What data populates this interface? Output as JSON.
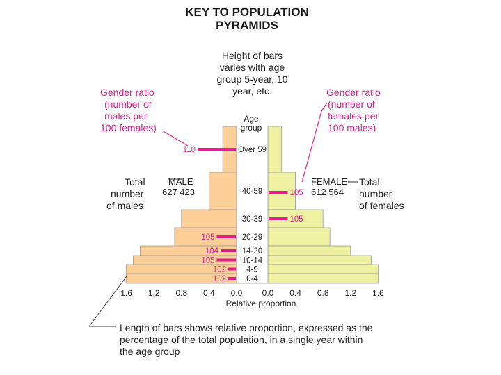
{
  "title": {
    "line1": "KEY TO POPULATION",
    "line2": "PYRAMIDS"
  },
  "height_note": [
    "Height of bars",
    "varies with age",
    "group 5-year, 10",
    "year, etc."
  ],
  "gender_left": [
    "Gender ratio",
    "(number of",
    "males per",
    "100 females)"
  ],
  "gender_right": [
    "Gender ratio",
    "(number of",
    "females per",
    "100 males)"
  ],
  "age_header": [
    "Age",
    "group"
  ],
  "total_males": [
    "Total",
    "number",
    "of males"
  ],
  "total_females": [
    "Total",
    "number",
    "of females"
  ],
  "male_label": {
    "name": "MALE",
    "count": "627 423"
  },
  "female_label": {
    "name": "FEMALE",
    "count": "612 564"
  },
  "x_axis_title": "Relative proportion",
  "length_note": [
    "Length of bars shows relative proportion, expressed as the",
    "percentage of the total population, in a single year within",
    "the age group"
  ],
  "colors": {
    "male": "#fccf98",
    "female": "#eef0a2",
    "ratio": "#e0218a"
  },
  "chart_data": {
    "type": "bar",
    "orientation": "horizontal-pyramid",
    "categories": [
      "Over 59",
      "40-59",
      "30-39",
      "20-29",
      "14-20",
      "10-14",
      "4-9",
      "0-4"
    ],
    "series": [
      {
        "name": "Male",
        "values": [
          0.2,
          0.4,
          0.8,
          0.9,
          1.4,
          1.5,
          1.6,
          1.6
        ]
      },
      {
        "name": "Female",
        "values": [
          0.2,
          0.4,
          0.8,
          0.9,
          1.2,
          1.5,
          1.6,
          1.6
        ]
      }
    ],
    "gender_ratio_male": [
      {
        "age": "Over 59",
        "value": "110"
      },
      {
        "age": "20-29",
        "value": "105"
      },
      {
        "age": "14-20",
        "value": "104"
      },
      {
        "age": "10-14",
        "value": "105"
      },
      {
        "age": "4-9",
        "value": "102"
      },
      {
        "age": "0-4",
        "value": "102"
      }
    ],
    "gender_ratio_female": [
      {
        "age": "40-59",
        "value": "105"
      },
      {
        "age": "30-39",
        "value": "105"
      }
    ],
    "male_ticks": [
      "1.6",
      "1.2",
      "0.8",
      "0.4",
      "0.0"
    ],
    "female_ticks": [
      "0.0",
      "0.4",
      "0.8",
      "1.2",
      "1.6"
    ],
    "xlim": [
      0,
      1.6
    ]
  }
}
